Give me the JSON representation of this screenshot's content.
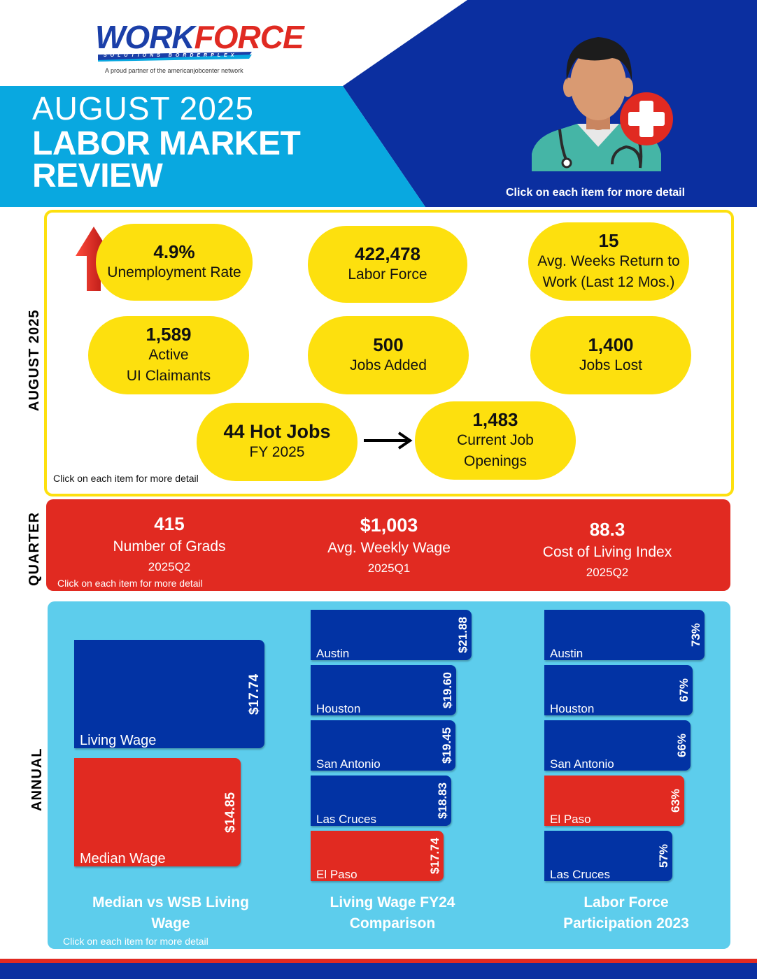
{
  "header": {
    "logo_word": "WORK",
    "logo_word2": "FORCE",
    "logo_sub": "SOLUTIONS BORDERPLEX",
    "logo_partner": "A proud partner of the americanjobcenter network",
    "month": "AUGUST 2025",
    "title_line1": "LABOR MARKET",
    "title_line2": "REVIEW",
    "click_hint": "Click on each item for more detail"
  },
  "monthly": {
    "side_label": "AUGUST 2025",
    "stats": [
      {
        "value": "4.9%",
        "label": "Unemployment Rate"
      },
      {
        "value": "422,478",
        "label": "Labor Force"
      },
      {
        "value": "15",
        "label": "Avg. Weeks Return to",
        "label2": "Work (Last 12 Mos.)"
      },
      {
        "value": "1,589",
        "label": "Active",
        "label2": "UI Claimants"
      },
      {
        "value": "500",
        "label": "Jobs Added"
      },
      {
        "value": "1,400",
        "label": "Jobs Lost"
      },
      {
        "value": "44 Hot Jobs",
        "label": "FY 2025"
      },
      {
        "value": "1,483",
        "label": "Current Job",
        "label2": "Openings"
      }
    ],
    "click_hint": "Click on each item for more detail"
  },
  "quarter": {
    "side_label": "QUARTER",
    "stats": [
      {
        "value": "415",
        "label": "Number of Grads",
        "period": "2025Q2"
      },
      {
        "value": "$1,003",
        "label": "Avg. Weekly Wage",
        "period": "2025Q1"
      },
      {
        "value": "88.3",
        "label": "Cost of Living Index",
        "period": "2025Q2"
      }
    ],
    "click_hint": "Click on each item for more detail"
  },
  "annual": {
    "side_label": "ANNUAL",
    "click_hint": "Click on each item for more detail"
  },
  "colors": {
    "blue": "#0233a4",
    "red": "#e12a21",
    "yellow": "#fde00e",
    "cyan": "#5dcdec"
  },
  "icons": [
    "doctor-icon",
    "medical-cross-icon",
    "up-arrow-icon",
    "right-arrow-icon"
  ],
  "chart_data": [
    {
      "type": "bar",
      "orientation": "horizontal",
      "title": "Median vs WSB Living Wage",
      "categories": [
        "Living Wage",
        "Median Wage"
      ],
      "values": [
        17.74,
        14.85
      ],
      "value_labels": [
        "$17.74",
        "$14.85"
      ],
      "colors": [
        "#0233a4",
        "#e12a21"
      ]
    },
    {
      "type": "bar",
      "orientation": "horizontal",
      "title": "Living Wage FY24 Comparison",
      "categories": [
        "Austin",
        "Houston",
        "San Antonio",
        "Las Cruces",
        "El Paso"
      ],
      "values": [
        21.88,
        19.6,
        19.45,
        18.83,
        17.74
      ],
      "value_labels": [
        "$21.88",
        "$19.60",
        "$19.45",
        "$18.83",
        "$17.74"
      ],
      "colors": [
        "#0233a4",
        "#0233a4",
        "#0233a4",
        "#0233a4",
        "#e12a21"
      ]
    },
    {
      "type": "bar",
      "orientation": "horizontal",
      "title": "Labor Force Participation 2023",
      "categories": [
        "Austin",
        "Houston",
        "San Antonio",
        "El Paso",
        "Las Cruces"
      ],
      "values": [
        73,
        67,
        66,
        63,
        57
      ],
      "value_labels": [
        "73%",
        "67%",
        "66%",
        "63%",
        "57%"
      ],
      "colors": [
        "#0233a4",
        "#0233a4",
        "#0233a4",
        "#e12a21",
        "#0233a4"
      ]
    }
  ]
}
